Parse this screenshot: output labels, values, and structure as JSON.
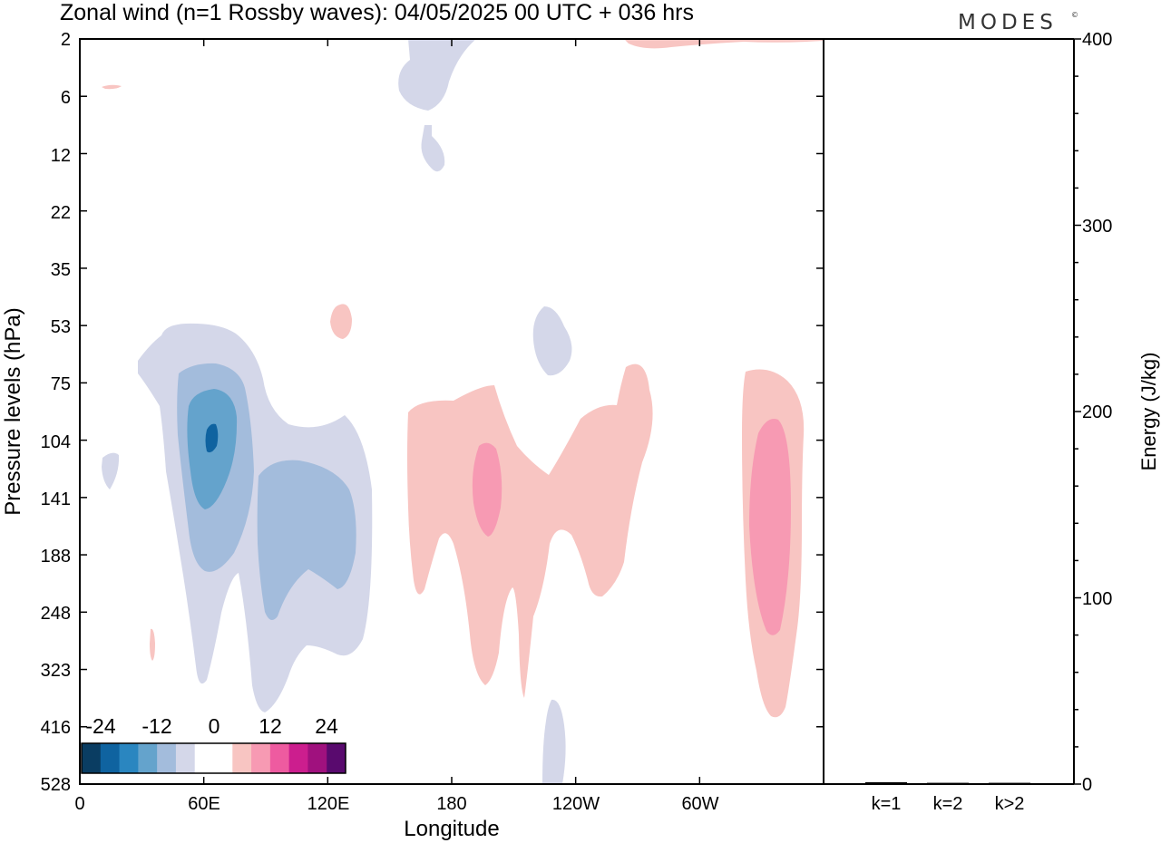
{
  "chart_data": {
    "type": "heatmap",
    "title": "Zonal wind (n=1 Rossby waves):  04/05/2025  00 UTC  + 036 hrs",
    "logo": "MODES",
    "logo_mark": "©",
    "xlabel": "Longitude",
    "ylabel": "Pressure levels (hPa)",
    "x_ticks": [
      "0",
      "60E",
      "120E",
      "180",
      "120W",
      "60W"
    ],
    "x_range": [
      0,
      360
    ],
    "y_ticks": [
      "2",
      "6",
      "12",
      "22",
      "35",
      "53",
      "75",
      "104",
      "141",
      "188",
      "248",
      "323",
      "416",
      "528"
    ],
    "colorbar": {
      "tick_labels": [
        "-24",
        "-12",
        "0",
        "12",
        "24"
      ],
      "colors": [
        "#0a3d62",
        "#0f63a0",
        "#2a86c0",
        "#64a3cc",
        "#a3bcdc",
        "#d4d7e9",
        "#ffffff",
        "#ffffff",
        "#f8c5c2",
        "#f79ab3",
        "#ee5ba0",
        "#cc1e8e",
        "#a0117e",
        "#590a6e"
      ]
    },
    "regions": [
      {
        "band": "-4..0",
        "lon": [
          148,
          175
        ],
        "p": [
          2,
          18
        ]
      },
      {
        "band": "-4..0",
        "lon": [
          5,
          10
        ],
        "p": [
          88,
          128
        ]
      },
      {
        "band": "-4..0",
        "lon": [
          27,
          140
        ],
        "p": [
          52,
          395
        ]
      },
      {
        "band": "-8..-4",
        "lon": [
          46,
          85
        ],
        "p": [
          79,
          185
        ]
      },
      {
        "band": "-12..-8",
        "lon": [
          51,
          76
        ],
        "p": [
          86,
          137
        ]
      },
      {
        "band": "-20..-16",
        "lon": [
          61,
          67
        ],
        "p": [
          98,
          112
        ]
      },
      {
        "band": "-8..-4",
        "lon": [
          86,
          140
        ],
        "p": [
          116,
          240
        ]
      },
      {
        "band": "-4..0",
        "lon": [
          218,
          237
        ],
        "p": [
          48,
          74
        ]
      },
      {
        "band": "-4..0",
        "lon": [
          224,
          235
        ],
        "p": [
          398,
          528
        ]
      },
      {
        "band": "0..4",
        "lon": [
          12,
          21
        ],
        "p": [
          5,
          6
        ]
      },
      {
        "band": "0..4",
        "lon": [
          33,
          37
        ],
        "p": [
          265,
          322
        ]
      },
      {
        "band": "0..4",
        "lon": [
          244,
          370
        ],
        "p": [
          2,
          3
        ]
      },
      {
        "band": "0..4",
        "lon": [
          122,
          132
        ],
        "p": [
          46,
          62
        ]
      },
      {
        "band": "0..4",
        "lon": [
          158,
          284
        ],
        "p": [
          69,
          345
        ]
      },
      {
        "band": "4..8",
        "lon": [
          190,
          204
        ],
        "p": [
          106,
          205
        ]
      },
      {
        "band": "0..4",
        "lon": [
          321,
          349
        ],
        "p": [
          70,
          425
        ]
      },
      {
        "band": "4..8",
        "lon": [
          324,
          344
        ],
        "p": [
          95,
          303
        ]
      }
    ]
  },
  "side_panel": {
    "ylabel": "Energy (J/kg)",
    "ylim": [
      0,
      400
    ],
    "y_ticks": [
      "0",
      "100",
      "200",
      "300",
      "400"
    ],
    "categories": [
      "k=1",
      "k=2",
      "k>2"
    ],
    "values": [
      0.5,
      0.2,
      0.2
    ]
  }
}
